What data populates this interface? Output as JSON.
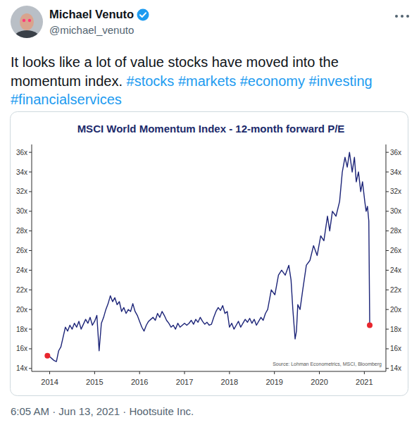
{
  "tweet": {
    "name": "Michael Venuto",
    "handle": "@michael_venuto",
    "text": "It looks like a lot of value stocks have moved into the momentum index.",
    "hashtags": [
      "#stocks",
      "#markets",
      "#economy",
      "#investing",
      "#financialservices"
    ],
    "timestamp": "6:05 AM · Jun 13, 2021 · Hootsuite Inc."
  },
  "chart_data": {
    "type": "line",
    "title": "MSCI World Momentum Index - 12-month forward P/E",
    "source": "Source: Lohman Econometrics, MSCI, Bloomberg",
    "x": [
      2013.95,
      2014.0,
      2014.05,
      2014.1,
      2014.15,
      2014.2,
      2014.25,
      2014.3,
      2014.35,
      2014.4,
      2014.45,
      2014.5,
      2014.55,
      2014.6,
      2014.65,
      2014.7,
      2014.75,
      2014.8,
      2014.85,
      2014.9,
      2014.95,
      2015.0,
      2015.05,
      2015.1,
      2015.15,
      2015.2,
      2015.25,
      2015.3,
      2015.35,
      2015.4,
      2015.45,
      2015.5,
      2015.55,
      2015.6,
      2015.65,
      2015.7,
      2015.75,
      2015.8,
      2015.85,
      2015.9,
      2015.95,
      2016.0,
      2016.05,
      2016.1,
      2016.15,
      2016.2,
      2016.25,
      2016.3,
      2016.35,
      2016.4,
      2016.45,
      2016.5,
      2016.55,
      2016.6,
      2016.65,
      2016.7,
      2016.75,
      2016.8,
      2016.85,
      2016.9,
      2016.95,
      2017.0,
      2017.05,
      2017.1,
      2017.15,
      2017.2,
      2017.25,
      2017.3,
      2017.35,
      2017.4,
      2017.45,
      2017.5,
      2017.55,
      2017.6,
      2017.65,
      2017.7,
      2017.75,
      2017.8,
      2017.85,
      2017.9,
      2017.95,
      2018.0,
      2018.05,
      2018.1,
      2018.15,
      2018.2,
      2018.25,
      2018.3,
      2018.35,
      2018.4,
      2018.45,
      2018.5,
      2018.55,
      2018.6,
      2018.65,
      2018.7,
      2018.75,
      2018.8,
      2018.85,
      2018.93,
      2019.01,
      2019.09,
      2019.16,
      2019.24,
      2019.32,
      2019.37,
      2019.41,
      2019.46,
      2019.49,
      2019.52,
      2019.57,
      2019.63,
      2019.71,
      2019.79,
      2019.87,
      2019.95,
      2020.03,
      2020.1,
      2020.18,
      2020.23,
      2020.29,
      2020.37,
      2020.45,
      2020.51,
      2020.57,
      2020.62,
      2020.67,
      2020.73,
      2020.78,
      2020.82,
      2020.87,
      2020.92,
      2020.96,
      2021.01,
      2021.04,
      2021.07,
      2021.1,
      2021.12
    ],
    "series": [
      {
        "color": "#1c2478",
        "marker": "ends",
        "values": [
          15.3,
          15.2,
          15.0,
          14.8,
          14.7,
          15.8,
          16.2,
          17.2,
          18.2,
          17.8,
          18.4,
          18.0,
          18.6,
          18.2,
          18.8,
          18.0,
          18.5,
          19.0,
          18.6,
          19.2,
          18.4,
          18.8,
          19.4,
          15.8,
          18.6,
          19.2,
          20.0,
          20.6,
          21.4,
          20.8,
          21.2,
          20.5,
          20.8,
          19.8,
          20.2,
          19.6,
          20.0,
          19.8,
          20.6,
          19.8,
          19.4,
          18.8,
          18.2,
          17.8,
          18.4,
          18.8,
          19.0,
          19.2,
          18.9,
          19.6,
          19.2,
          19.8,
          19.4,
          18.9,
          18.6,
          18.2,
          18.4,
          18.0,
          18.6,
          18.2,
          18.4,
          18.6,
          18.4,
          18.6,
          18.9,
          18.5,
          19.0,
          18.7,
          19.2,
          18.8,
          18.5,
          18.7,
          18.4,
          18.5,
          19.2,
          19.8,
          20.2,
          19.9,
          20.4,
          19.6,
          19.8,
          18.2,
          18.6,
          18.0,
          18.4,
          18.8,
          18.2,
          18.6,
          19.0,
          18.7,
          19.1,
          18.6,
          19.0,
          18.4,
          18.8,
          19.2,
          18.9,
          19.6,
          20.0,
          22.0,
          21.5,
          23.5,
          24.0,
          23.5,
          24.5,
          23.0,
          20.0,
          17.0,
          17.8,
          20.5,
          20.0,
          22.0,
          24.5,
          25.0,
          26.5,
          25.5,
          27.5,
          27.0,
          29.5,
          28.0,
          30.0,
          29.5,
          31.0,
          34.0,
          35.5,
          34.5,
          36.0,
          34.0,
          35.5,
          33.0,
          34.0,
          32.0,
          33.0,
          31.0,
          30.0,
          30.5,
          29.0,
          18.4
        ]
      }
    ],
    "xlim": [
      2013.6,
      2021.48
    ],
    "xticks": [
      2014,
      2015,
      2016,
      2017,
      2018,
      2019,
      2020,
      2021
    ],
    "ylim": [
      13.7,
      36.8
    ],
    "yticks": [
      {
        "value": 14,
        "label": "14x"
      },
      {
        "value": 16,
        "label": "16x"
      },
      {
        "value": 18,
        "label": "18x"
      },
      {
        "value": 20,
        "label": "20x"
      },
      {
        "value": 22,
        "label": "22x"
      },
      {
        "value": 24,
        "label": "24x"
      },
      {
        "value": 26,
        "label": "26x"
      },
      {
        "value": 28,
        "label": "28x"
      },
      {
        "value": 30,
        "label": "30x"
      },
      {
        "value": 32,
        "label": "32x"
      },
      {
        "value": 34,
        "label": "34x"
      },
      {
        "value": 36,
        "label": "36x"
      }
    ],
    "grid": false
  }
}
